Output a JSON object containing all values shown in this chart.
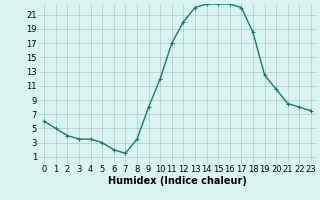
{
  "x": [
    0,
    1,
    2,
    3,
    4,
    5,
    6,
    7,
    8,
    9,
    10,
    11,
    12,
    13,
    14,
    15,
    16,
    17,
    18,
    19,
    20,
    21,
    22,
    23
  ],
  "y": [
    6,
    5,
    4,
    3.5,
    3.5,
    3,
    2,
    1.5,
    3.5,
    8,
    12,
    17,
    20,
    22,
    22.5,
    22.5,
    22.5,
    22,
    18.5,
    12.5,
    10.5,
    8.5,
    8,
    7.5
  ],
  "line_color": "#1a7a6a",
  "marker": "+",
  "marker_size": 3,
  "bg_color": "#d8f5f0",
  "grid_color": "#b0c8c8",
  "xlabel": "Humidex (Indice chaleur)",
  "xlim": [
    -0.5,
    23.5
  ],
  "ylim": [
    0,
    22.5
  ],
  "yticks": [
    1,
    3,
    5,
    7,
    9,
    11,
    13,
    15,
    17,
    19,
    21
  ],
  "xticks": [
    0,
    1,
    2,
    3,
    4,
    5,
    6,
    7,
    8,
    9,
    10,
    11,
    12,
    13,
    14,
    15,
    16,
    17,
    18,
    19,
    20,
    21,
    22,
    23
  ],
  "xlabel_fontsize": 7,
  "tick_fontsize": 6,
  "linewidth": 1.0
}
